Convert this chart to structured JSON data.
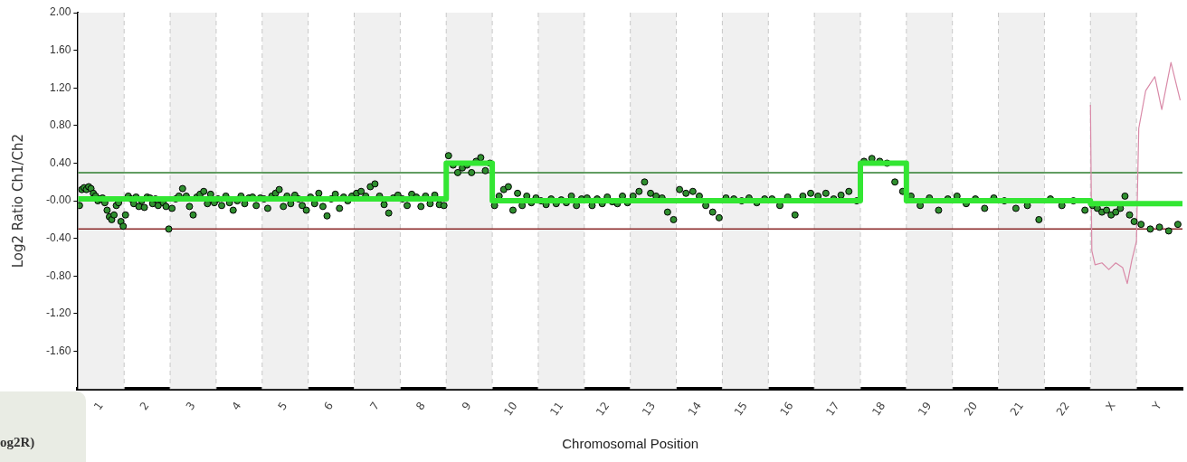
{
  "chart_data": {
    "type": "scatter",
    "xlabel": "Chromosomal Position",
    "ylabel": "Log2 Ratio Ch1/Ch2",
    "annotations": [
      "og2R)"
    ],
    "xlim": [
      0.5,
      24.5
    ],
    "ylim": [
      -2,
      2
    ],
    "xticks": [
      1,
      2,
      3,
      4,
      5,
      6,
      7,
      8,
      9,
      10,
      11,
      12,
      13,
      14,
      15,
      16,
      17,
      18,
      19,
      20,
      21,
      22,
      {
        "value": 23,
        "label": "X"
      },
      {
        "value": 24,
        "label": "Y"
      }
    ],
    "yticks": [
      {
        "value": 2,
        "label": "2.00"
      },
      {
        "value": 1.6,
        "label": "1.60"
      },
      {
        "value": 1.2,
        "label": "1.20"
      },
      {
        "value": 0.8,
        "label": "0.80"
      },
      {
        "value": 0.4,
        "label": "0.40"
      },
      {
        "value": 0,
        "label": "-0.00"
      },
      {
        "value": -0.4,
        "label": "-0.40"
      },
      {
        "value": -0.8,
        "label": "-0.80"
      },
      {
        "value": -1.2,
        "label": "-1.20"
      },
      {
        "value": -1.6,
        "label": "-1.60"
      }
    ],
    "grid": false,
    "legend": false,
    "ref_lines": [
      {
        "axis": "y",
        "value": 0.3,
        "color": "#2e7d2e"
      },
      {
        "axis": "y",
        "value": -0.3,
        "color": "#8b2a2a"
      }
    ],
    "bands": [
      {
        "axis": "x",
        "from": 0.5,
        "to": 1.5,
        "color": "#f0f0f0"
      },
      {
        "axis": "x",
        "from": 2.5,
        "to": 3.5,
        "color": "#f0f0f0"
      },
      {
        "axis": "x",
        "from": 4.5,
        "to": 5.5,
        "color": "#f0f0f0"
      },
      {
        "axis": "x",
        "from": 6.5,
        "to": 7.5,
        "color": "#f0f0f0"
      },
      {
        "axis": "x",
        "from": 8.5,
        "to": 9.5,
        "color": "#f0f0f0"
      },
      {
        "axis": "x",
        "from": 10.5,
        "to": 11.5,
        "color": "#f0f0f0"
      },
      {
        "axis": "x",
        "from": 12.5,
        "to": 13.5,
        "color": "#f0f0f0"
      },
      {
        "axis": "x",
        "from": 14.5,
        "to": 15.5,
        "color": "#f0f0f0"
      },
      {
        "axis": "x",
        "from": 16.5,
        "to": 17.5,
        "color": "#f0f0f0"
      },
      {
        "axis": "x",
        "from": 18.5,
        "to": 19.5,
        "color": "#f0f0f0"
      },
      {
        "axis": "x",
        "from": 20.5,
        "to": 21.5,
        "color": "#f0f0f0"
      },
      {
        "axis": "x",
        "from": 22.5,
        "to": 23.5,
        "color": "#f0f0f0"
      }
    ],
    "series": [
      {
        "type": "line",
        "color": "#d98aa8",
        "marker": "none",
        "x": [
          22.5,
          22.53,
          22.6,
          22.75,
          22.9,
          23.05,
          23.2,
          23.3,
          23.4,
          23.5,
          23.55,
          23.7,
          23.9,
          24.05,
          24.25,
          24.45
        ],
        "values": [
          1.02,
          -0.53,
          -0.68,
          -0.66,
          -0.73,
          -0.66,
          -0.71,
          -0.88,
          -0.63,
          -0.43,
          0.77,
          1.17,
          1.32,
          0.97,
          1.47,
          1.07
        ]
      },
      {
        "color": "#2f8f2f",
        "marker": "circle",
        "x": [
          0.53,
          0.58,
          0.63,
          0.68,
          0.73,
          0.78,
          0.83,
          0.88,
          0.93,
          0.98,
          1.03,
          1.08,
          1.13,
          1.18,
          1.23,
          1.28,
          1.33,
          1.38,
          1.43,
          1.48,
          1.53,
          1.59,
          1.65,
          1.71,
          1.76,
          1.82,
          1.88,
          1.94,
          2.0,
          2.06,
          2.12,
          2.18,
          2.24,
          2.29,
          2.35,
          2.41,
          2.47,
          2.54,
          2.62,
          2.69,
          2.77,
          2.85,
          2.92,
          3.0,
          3.08,
          3.15,
          3.23,
          3.31,
          3.38,
          3.46,
          3.54,
          3.62,
          3.71,
          3.79,
          3.87,
          3.96,
          4.04,
          4.12,
          4.21,
          4.29,
          4.37,
          4.46,
          4.54,
          4.62,
          4.71,
          4.79,
          4.87,
          4.96,
          5.04,
          5.12,
          5.21,
          5.29,
          5.37,
          5.46,
          5.55,
          5.64,
          5.73,
          5.82,
          5.91,
          6.0,
          6.09,
          6.18,
          6.27,
          6.36,
          6.45,
          6.55,
          6.65,
          6.75,
          6.85,
          6.95,
          7.05,
          7.15,
          7.25,
          7.35,
          7.45,
          7.55,
          7.65,
          7.75,
          7.85,
          7.95,
          8.05,
          8.15,
          8.25,
          8.35,
          8.45,
          8.55,
          8.65,
          8.75,
          8.85,
          8.95,
          9.05,
          9.15,
          9.25,
          9.35,
          9.45,
          9.55,
          9.65,
          9.75,
          9.85,
          9.95,
          10.05,
          10.15,
          10.25,
          10.35,
          10.45,
          10.56,
          10.67,
          10.78,
          10.89,
          11.0,
          11.11,
          11.22,
          11.33,
          11.44,
          11.56,
          11.67,
          11.78,
          11.89,
          12.0,
          12.11,
          12.22,
          12.33,
          12.44,
          12.56,
          12.69,
          12.81,
          12.94,
          13.06,
          13.19,
          13.31,
          13.44,
          13.57,
          13.71,
          13.86,
          14.0,
          14.14,
          14.29,
          14.43,
          14.58,
          14.75,
          14.92,
          15.08,
          15.25,
          15.42,
          15.58,
          15.75,
          15.92,
          16.08,
          16.25,
          16.42,
          16.58,
          16.75,
          16.92,
          17.08,
          17.25,
          17.42,
          17.58,
          17.75,
          17.92,
          18.08,
          18.25,
          18.42,
          18.6,
          18.8,
          19.0,
          19.2,
          19.4,
          19.6,
          19.8,
          20.0,
          20.2,
          20.4,
          20.63,
          20.88,
          21.13,
          21.38,
          21.63,
          21.88,
          22.13,
          22.38,
          22.55,
          22.65,
          22.75,
          22.85,
          22.95,
          23.05,
          23.15,
          23.25,
          23.35,
          23.45,
          23.6,
          23.8,
          24.0,
          24.2,
          24.4
        ],
        "values": [
          -0.05,
          0.12,
          0.14,
          0.12,
          0.15,
          0.13,
          0.08,
          0.05,
          0.0,
          0.02,
          0.03,
          -0.02,
          -0.1,
          -0.17,
          -0.2,
          -0.15,
          -0.05,
          -0.02,
          -0.22,
          -0.27,
          -0.15,
          0.05,
          0.02,
          -0.03,
          0.04,
          -0.06,
          0.0,
          -0.07,
          0.04,
          0.03,
          -0.03,
          0.02,
          -0.05,
          0.01,
          -0.02,
          -0.06,
          -0.3,
          -0.08,
          0.02,
          0.05,
          0.13,
          0.05,
          -0.06,
          -0.15,
          0.04,
          0.07,
          0.1,
          -0.03,
          0.07,
          -0.02,
          0.02,
          -0.05,
          0.05,
          -0.02,
          -0.1,
          0.0,
          0.05,
          -0.03,
          0.03,
          0.04,
          -0.05,
          0.03,
          0.02,
          -0.08,
          0.05,
          0.08,
          0.12,
          -0.06,
          0.05,
          -0.03,
          0.06,
          0.02,
          -0.05,
          -0.1,
          0.04,
          -0.03,
          0.08,
          -0.06,
          -0.16,
          0.02,
          0.07,
          -0.08,
          0.04,
          0.0,
          0.05,
          0.08,
          0.1,
          0.05,
          0.15,
          0.18,
          0.05,
          -0.04,
          -0.13,
          0.03,
          0.06,
          0.02,
          -0.05,
          0.07,
          0.04,
          -0.06,
          0.05,
          -0.03,
          0.06,
          -0.04,
          -0.05,
          0.48,
          0.38,
          0.3,
          0.35,
          0.38,
          0.3,
          0.42,
          0.46,
          0.32,
          0.4,
          -0.05,
          0.05,
          0.12,
          0.15,
          -0.1,
          0.08,
          -0.05,
          0.05,
          -0.02,
          0.03,
          0.0,
          -0.04,
          0.02,
          -0.03,
          0.01,
          -0.02,
          0.05,
          -0.05,
          0.02,
          0.03,
          -0.05,
          0.02,
          -0.03,
          0.04,
          -0.01,
          -0.03,
          0.05,
          -0.02,
          0.05,
          0.1,
          0.2,
          0.08,
          0.05,
          0.03,
          -0.12,
          -0.2,
          0.12,
          0.08,
          0.1,
          0.05,
          -0.05,
          -0.12,
          -0.18,
          0.03,
          0.02,
          0.0,
          0.03,
          -0.02,
          0.02,
          0.02,
          -0.05,
          0.04,
          -0.15,
          0.05,
          0.08,
          0.05,
          0.08,
          0.02,
          0.06,
          0.1,
          0.0,
          0.42,
          0.45,
          0.42,
          0.4,
          0.2,
          0.1,
          0.05,
          -0.05,
          0.03,
          -0.1,
          0.02,
          0.05,
          -0.03,
          0.02,
          -0.08,
          0.03,
          0.0,
          -0.08,
          -0.05,
          -0.2,
          0.02,
          -0.05,
          0.0,
          -0.1,
          -0.05,
          -0.08,
          -0.12,
          -0.1,
          -0.15,
          -0.12,
          -0.08,
          0.05,
          -0.15,
          -0.22,
          -0.25,
          -0.3,
          -0.28,
          -0.32,
          -0.25
        ]
      },
      {
        "type": "line",
        "color": "#33e633",
        "marker": "none",
        "x": [
          0.5,
          8.5,
          8.5,
          9.5,
          9.5,
          17.5,
          17.5,
          18.5,
          18.5,
          22.5,
          22.5,
          24.5
        ],
        "values": [
          0.02,
          0.02,
          0.4,
          0.4,
          0.0,
          0.0,
          0.4,
          0.4,
          0.0,
          0.0,
          -0.03,
          -0.03
        ]
      }
    ]
  }
}
